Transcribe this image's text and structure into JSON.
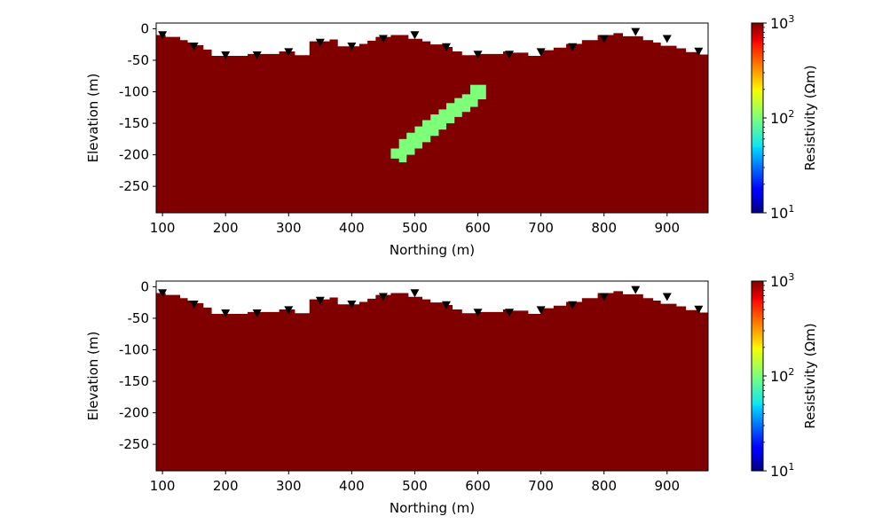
{
  "chart_data": [
    {
      "type": "heatmap",
      "title": "",
      "xlabel": "Northing (m)",
      "ylabel": "Elevation (m)",
      "xlim": [
        90,
        965
      ],
      "ylim": [
        -292,
        9
      ],
      "xticks": [
        100,
        200,
        300,
        400,
        500,
        600,
        700,
        800,
        900
      ],
      "yticks": [
        0,
        -50,
        -100,
        -150,
        -200,
        -250
      ],
      "background_resistivity": 1000,
      "background_color": "#800000",
      "surface_topography": {
        "x": [
          90,
          105,
          105,
          128,
          128,
          140,
          140,
          153,
          153,
          165,
          165,
          178,
          178,
          235,
          235,
          285,
          285,
          310,
          310,
          333,
          333,
          365,
          365,
          378,
          378,
          412,
          412,
          425,
          425,
          438,
          438,
          462,
          462,
          490,
          490,
          512,
          512,
          525,
          525,
          550,
          550,
          560,
          560,
          575,
          575,
          600,
          600,
          640,
          640,
          655,
          655,
          680,
          680,
          700,
          700,
          720,
          720,
          740,
          740,
          765,
          765,
          790,
          790,
          815,
          815,
          830,
          830,
          862,
          862,
          878,
          878,
          890,
          890,
          915,
          915,
          930,
          930,
          952,
          952,
          965
        ],
        "y": [
          -10,
          -10,
          -13,
          -13,
          -18,
          -18,
          -22,
          -22,
          -26,
          -26,
          -33,
          -33,
          -43,
          -43,
          -40,
          -40,
          -36,
          -36,
          -42,
          -42,
          -20,
          -20,
          -17,
          -17,
          -28,
          -28,
          -24,
          -24,
          -19,
          -19,
          -13,
          -13,
          -10,
          -10,
          -16,
          -16,
          -20,
          -20,
          -25,
          -25,
          -29,
          -29,
          -36,
          -36,
          -42,
          -42,
          -40,
          -40,
          -36,
          -36,
          -38,
          -38,
          -43,
          -43,
          -34,
          -34,
          -30,
          -30,
          -24,
          -24,
          -18,
          -18,
          -10,
          -10,
          -7,
          -7,
          -12,
          -12,
          -18,
          -18,
          -22,
          -22,
          -27,
          -27,
          -31,
          -31,
          -37,
          -37,
          -41,
          -41
        ]
      },
      "receivers": [
        {
          "x": 100,
          "y": -11
        },
        {
          "x": 150,
          "y": -29
        },
        {
          "x": 200,
          "y": -43
        },
        {
          "x": 250,
          "y": -43
        },
        {
          "x": 300,
          "y": -38
        },
        {
          "x": 350,
          "y": -23
        },
        {
          "x": 400,
          "y": -29
        },
        {
          "x": 450,
          "y": -17
        },
        {
          "x": 500,
          "y": -11
        },
        {
          "x": 550,
          "y": -30
        },
        {
          "x": 600,
          "y": -42
        },
        {
          "x": 650,
          "y": -42
        },
        {
          "x": 700,
          "y": -38
        },
        {
          "x": 750,
          "y": -30
        },
        {
          "x": 800,
          "y": -17
        },
        {
          "x": 850,
          "y": -6
        },
        {
          "x": 900,
          "y": -17
        },
        {
          "x": 950,
          "y": -37
        }
      ],
      "anomaly": {
        "resistivity": 100,
        "color": "#7dff7a",
        "cells": [
          [
            588,
            613,
            -112,
            -89
          ],
          [
            575,
            600,
            -124,
            -104
          ],
          [
            563,
            588,
            -132,
            -110
          ],
          [
            550,
            575,
            -140,
            -118
          ],
          [
            538,
            563,
            -150,
            -128
          ],
          [
            525,
            550,
            -160,
            -136
          ],
          [
            512,
            538,
            -170,
            -145
          ],
          [
            500,
            525,
            -180,
            -155
          ],
          [
            487,
            512,
            -190,
            -165
          ],
          [
            475,
            500,
            -200,
            -175
          ],
          [
            462,
            487,
            -206,
            -190
          ],
          [
            475,
            487,
            -212,
            -200
          ]
        ]
      },
      "colorbar": {
        "label": "Resistivity (Ωm)",
        "scale": "log",
        "range": [
          10,
          1000
        ],
        "tick_bases": [
          "10",
          "10",
          "10"
        ],
        "tick_exponents": [
          "1",
          "2",
          "3"
        ]
      }
    },
    {
      "type": "heatmap",
      "title": "",
      "xlabel": "Northing (m)",
      "ylabel": "Elevation (m)",
      "xlim": [
        90,
        965
      ],
      "ylim": [
        -292,
        9
      ],
      "xticks": [
        100,
        200,
        300,
        400,
        500,
        600,
        700,
        800,
        900
      ],
      "yticks": [
        0,
        -50,
        -100,
        -150,
        -200,
        -250
      ],
      "background_resistivity": 1000,
      "background_color": "#800000",
      "surface_topography": {
        "x": [
          90,
          105,
          105,
          128,
          128,
          140,
          140,
          153,
          153,
          165,
          165,
          178,
          178,
          235,
          235,
          285,
          285,
          310,
          310,
          333,
          333,
          365,
          365,
          378,
          378,
          412,
          412,
          425,
          425,
          438,
          438,
          462,
          462,
          490,
          490,
          512,
          512,
          525,
          525,
          550,
          550,
          560,
          560,
          575,
          575,
          600,
          600,
          640,
          640,
          655,
          655,
          680,
          680,
          700,
          700,
          720,
          720,
          740,
          740,
          765,
          765,
          790,
          790,
          815,
          815,
          830,
          830,
          862,
          862,
          878,
          878,
          890,
          890,
          915,
          915,
          930,
          930,
          952,
          952,
          965
        ],
        "y": [
          -10,
          -10,
          -13,
          -13,
          -18,
          -18,
          -22,
          -22,
          -26,
          -26,
          -33,
          -33,
          -43,
          -43,
          -40,
          -40,
          -36,
          -36,
          -42,
          -42,
          -20,
          -20,
          -17,
          -17,
          -28,
          -28,
          -24,
          -24,
          -19,
          -19,
          -13,
          -13,
          -10,
          -10,
          -16,
          -16,
          -20,
          -20,
          -25,
          -25,
          -29,
          -29,
          -36,
          -36,
          -42,
          -42,
          -40,
          -40,
          -36,
          -36,
          -38,
          -38,
          -43,
          -43,
          -34,
          -34,
          -30,
          -30,
          -24,
          -24,
          -18,
          -18,
          -10,
          -10,
          -7,
          -7,
          -12,
          -12,
          -18,
          -18,
          -22,
          -22,
          -27,
          -27,
          -31,
          -31,
          -37,
          -37,
          -41,
          -41
        ]
      },
      "receivers": [
        {
          "x": 100,
          "y": -11
        },
        {
          "x": 150,
          "y": -29
        },
        {
          "x": 200,
          "y": -43
        },
        {
          "x": 250,
          "y": -43
        },
        {
          "x": 300,
          "y": -38
        },
        {
          "x": 350,
          "y": -23
        },
        {
          "x": 400,
          "y": -29
        },
        {
          "x": 450,
          "y": -17
        },
        {
          "x": 500,
          "y": -11
        },
        {
          "x": 550,
          "y": -30
        },
        {
          "x": 600,
          "y": -42
        },
        {
          "x": 650,
          "y": -42
        },
        {
          "x": 700,
          "y": -38
        },
        {
          "x": 750,
          "y": -30
        },
        {
          "x": 800,
          "y": -17
        },
        {
          "x": 850,
          "y": -6
        },
        {
          "x": 900,
          "y": -17
        },
        {
          "x": 950,
          "y": -37
        }
      ],
      "anomaly": null,
      "colorbar": {
        "label": "Resistivity (Ωm)",
        "scale": "log",
        "range": [
          10,
          1000
        ],
        "tick_bases": [
          "10",
          "10",
          "10"
        ],
        "tick_exponents": [
          "1",
          "2",
          "3"
        ]
      }
    }
  ]
}
